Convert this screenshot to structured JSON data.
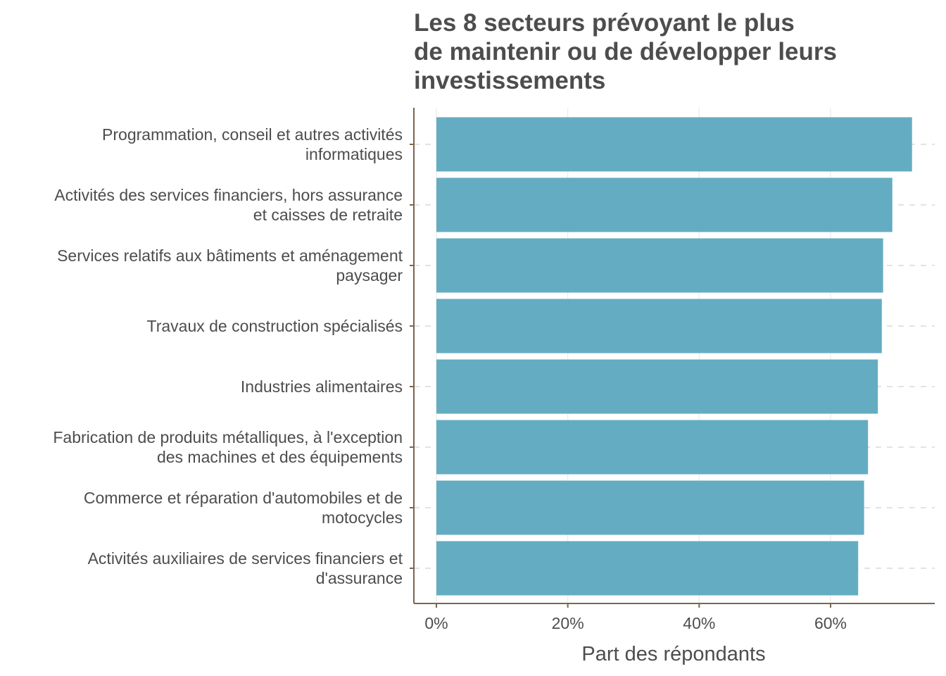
{
  "chart_data": {
    "type": "bar",
    "orientation": "horizontal",
    "title_lines": [
      "Les 8 secteurs prévoyant le plus",
      "de maintenir ou de développer leurs",
      "investissements"
    ],
    "xlabel": "Part des répondants",
    "ylabel": "",
    "xlim": [
      0,
      0.76
    ],
    "xticks": [
      0,
      0.2,
      0.4,
      0.6
    ],
    "xtick_labels": [
      "0%",
      "20%",
      "40%",
      "60%"
    ],
    "grid": "vertical gridlines, dashed horizontal guides",
    "categories": [
      [
        "Programmation, conseil et autres activités",
        "informatiques"
      ],
      [
        "Activités des services financiers, hors assurance",
        "et caisses de retraite"
      ],
      [
        "Services relatifs aux bâtiments et aménagement",
        "paysager"
      ],
      [
        "Travaux de construction spécialisés"
      ],
      [
        "Industries alimentaires"
      ],
      [
        "Fabrication de produits métalliques, à l'exception",
        "des machines et des équipements"
      ],
      [
        "Commerce et réparation d'automobiles et de",
        "motocycles"
      ],
      [
        "Activités auxiliaires de services financiers et",
        "d'assurance"
      ]
    ],
    "values": [
      0.724,
      0.694,
      0.68,
      0.678,
      0.672,
      0.657,
      0.651,
      0.642
    ],
    "colors": {
      "bar": "#64acc2",
      "text": "#4d4d4d",
      "axis": "#7a6650",
      "grid": "#ebebeb"
    }
  }
}
